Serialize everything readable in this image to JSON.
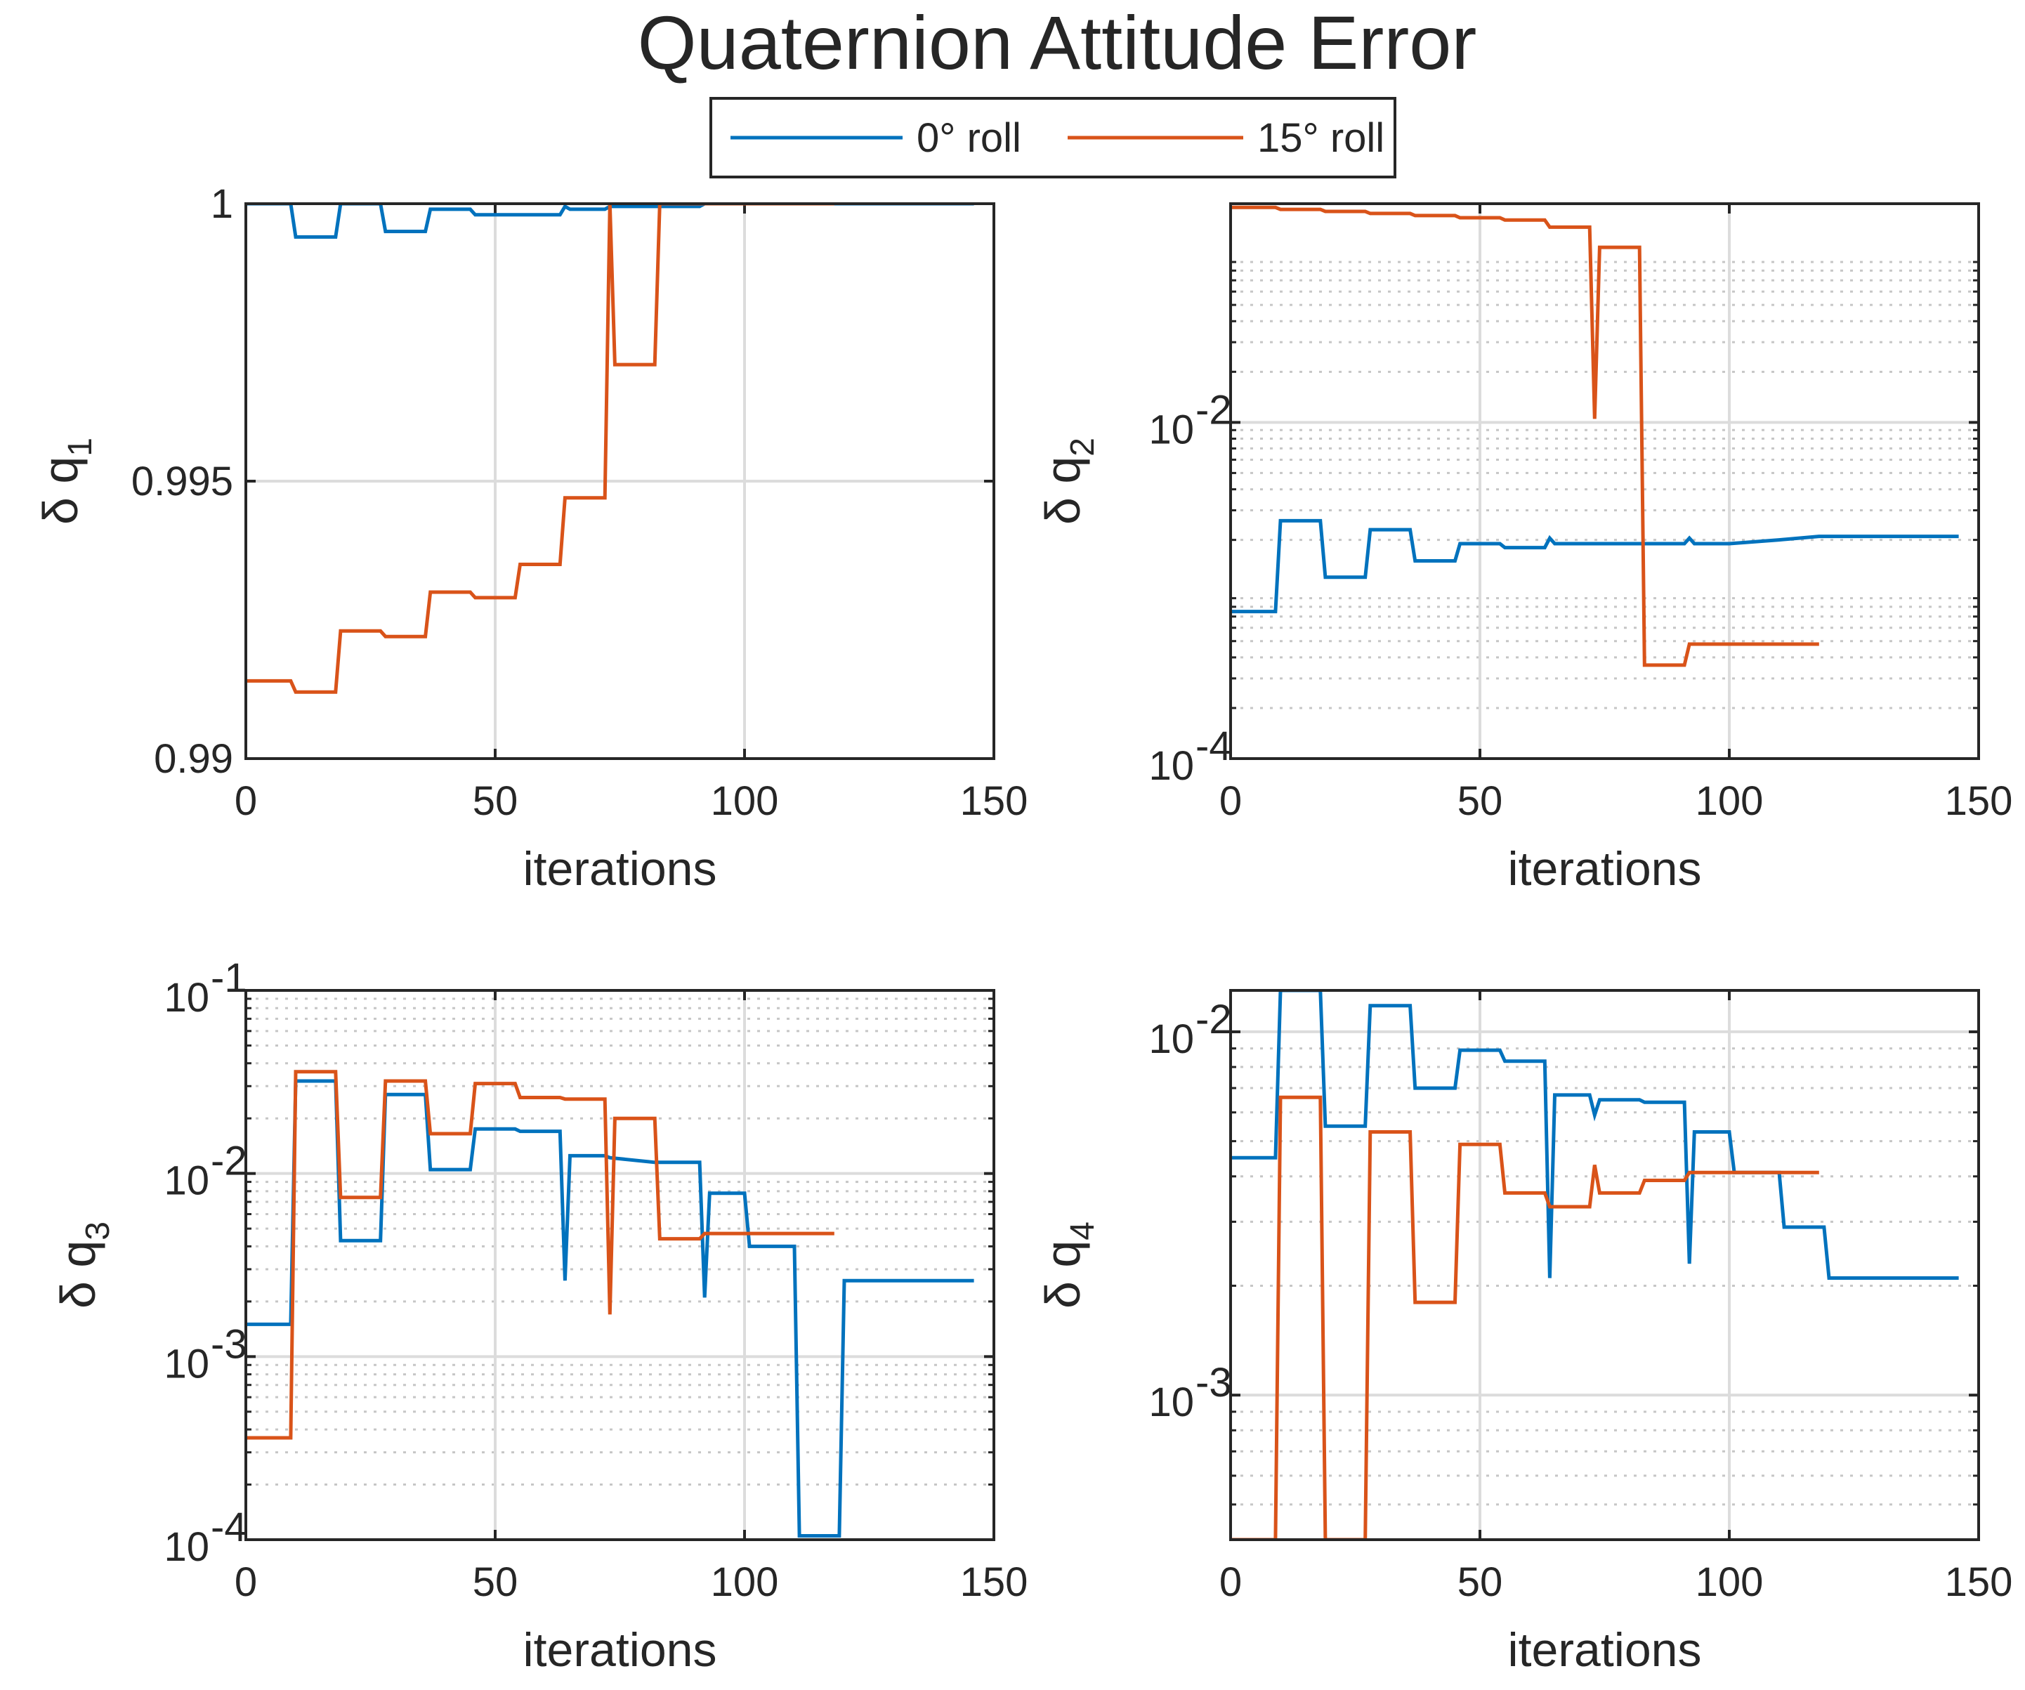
{
  "chart_data": {
    "type": "line",
    "title": "Quaternion Attitude Error",
    "legend": {
      "placement": "top-center",
      "entries": [
        {
          "label": "0° roll",
          "color": "#0072BD"
        },
        {
          "label": "15° roll",
          "color": "#D95319"
        }
      ]
    },
    "subplots": [
      {
        "id": "q1",
        "ylabel_base": "δ q",
        "ylabel_sub": "1",
        "xlabel": "iterations",
        "xlim": [
          0,
          150
        ],
        "xticks": [
          0,
          50,
          100,
          150
        ],
        "yscale": "linear",
        "ylim": [
          0.99,
          1.0
        ],
        "yticks": [
          {
            "value": 0.99,
            "label": "0.99"
          },
          {
            "value": 0.995,
            "label": "0.995"
          },
          {
            "value": 1.0,
            "label": "1"
          }
        ],
        "series": [
          {
            "name": "0° roll",
            "x": [
              0,
              9,
              10,
              18,
              19,
              27,
              28,
              36,
              37,
              45,
              46,
              54,
              55,
              63,
              64,
              65,
              72,
              73,
              82,
              83,
              91,
              92,
              100,
              110,
              118,
              146
            ],
            "y": [
              1.0,
              1.0,
              0.9994,
              0.9994,
              1.0,
              1.0,
              0.9995,
              0.9995,
              0.9999,
              0.9999,
              0.9998,
              0.9998,
              0.9998,
              0.9998,
              0.99995,
              0.9999,
              0.9999,
              0.99995,
              0.99995,
              0.99995,
              0.99995,
              1.0,
              1.0,
              1.0,
              1.0,
              1.0
            ]
          },
          {
            "name": "15° roll",
            "x": [
              0,
              9,
              10,
              18,
              19,
              27,
              28,
              36,
              37,
              45,
              46,
              54,
              55,
              63,
              64,
              72,
              73,
              74,
              82,
              83,
              91,
              92,
              100,
              110,
              118
            ],
            "y": [
              0.9914,
              0.9914,
              0.9912,
              0.9912,
              0.9923,
              0.9923,
              0.9922,
              0.9922,
              0.993,
              0.993,
              0.9929,
              0.9929,
              0.9935,
              0.9935,
              0.9947,
              0.9947,
              1.0,
              0.9971,
              0.9971,
              1.0,
              1.0,
              1.0,
              1.0,
              1.0,
              1.0
            ]
          }
        ]
      },
      {
        "id": "q2",
        "ylabel_base": "δ q",
        "ylabel_sub": "2",
        "xlabel": "iterations",
        "xlim": [
          0,
          150
        ],
        "xticks": [
          0,
          50,
          100,
          150
        ],
        "yscale": "log",
        "ylim": [
          0.0001,
          0.2
        ],
        "yticks": [
          {
            "value": 0.0001,
            "base": "10",
            "exp": "-4"
          },
          {
            "value": 0.01,
            "base": "10",
            "exp": "-2"
          }
        ],
        "series": [
          {
            "name": "0° roll",
            "x": [
              0,
              9,
              10,
              18,
              19,
              27,
              28,
              36,
              37,
              45,
              46,
              54,
              55,
              63,
              64,
              65,
              72,
              73,
              82,
              83,
              91,
              92,
              93,
              100,
              110,
              118,
              146
            ],
            "y": [
              0.00075,
              0.00075,
              0.0026,
              0.0026,
              0.0012,
              0.0012,
              0.0023,
              0.0023,
              0.0015,
              0.0015,
              0.0019,
              0.0019,
              0.0018,
              0.0018,
              0.00205,
              0.0019,
              0.0019,
              0.0019,
              0.0019,
              0.0019,
              0.0019,
              0.00205,
              0.0019,
              0.0019,
              0.002,
              0.0021,
              0.0021
            ]
          },
          {
            "name": "15° roll",
            "x": [
              0,
              9,
              10,
              18,
              19,
              27,
              28,
              36,
              37,
              45,
              46,
              54,
              55,
              63,
              64,
              72,
              73,
              74,
              82,
              83,
              91,
              92,
              100,
              110,
              118
            ],
            "y": [
              0.19,
              0.19,
              0.185,
              0.185,
              0.18,
              0.18,
              0.175,
              0.175,
              0.17,
              0.17,
              0.165,
              0.165,
              0.16,
              0.16,
              0.145,
              0.145,
              0.0105,
              0.11,
              0.11,
              0.00036,
              0.00036,
              0.00048,
              0.00048,
              0.00048,
              0.00048
            ]
          }
        ]
      },
      {
        "id": "q3",
        "ylabel_base": "δ q",
        "ylabel_sub": "3",
        "xlabel": "iterations",
        "xlim": [
          0,
          150
        ],
        "xticks": [
          0,
          50,
          100,
          150
        ],
        "yscale": "log",
        "ylim": [
          0.0001,
          0.1
        ],
        "yticks": [
          {
            "value": 0.0001,
            "base": "10",
            "exp": "-4"
          },
          {
            "value": 0.001,
            "base": "10",
            "exp": "-3"
          },
          {
            "value": 0.01,
            "base": "10",
            "exp": "-2"
          },
          {
            "value": 0.1,
            "base": "10",
            "exp": "-1"
          }
        ],
        "series": [
          {
            "name": "0° roll",
            "x": [
              0,
              9,
              10,
              18,
              19,
              27,
              28,
              36,
              37,
              45,
              46,
              54,
              55,
              63,
              64,
              65,
              72,
              73,
              82,
              83,
              91,
              92,
              93,
              100,
              101,
              110,
              111,
              119,
              120,
              146
            ],
            "y": [
              0.0015,
              0.0015,
              0.032,
              0.032,
              0.0043,
              0.0043,
              0.027,
              0.027,
              0.0105,
              0.0105,
              0.0175,
              0.0175,
              0.017,
              0.017,
              0.0026,
              0.0125,
              0.0125,
              0.0122,
              0.0115,
              0.0115,
              0.0115,
              0.0021,
              0.0078,
              0.0078,
              0.004,
              0.004,
              0.000105,
              0.000105,
              0.0026,
              0.0026
            ]
          },
          {
            "name": "15° roll",
            "x": [
              0,
              9,
              10,
              18,
              19,
              27,
              28,
              36,
              37,
              45,
              46,
              54,
              55,
              63,
              64,
              72,
              73,
              74,
              82,
              83,
              91,
              92,
              100,
              110,
              118
            ],
            "y": [
              0.00036,
              0.00036,
              0.036,
              0.036,
              0.0074,
              0.0074,
              0.032,
              0.032,
              0.0165,
              0.0165,
              0.031,
              0.031,
              0.026,
              0.026,
              0.0255,
              0.0255,
              0.0017,
              0.02,
              0.02,
              0.0044,
              0.0044,
              0.0047,
              0.0047,
              0.0047,
              0.0047
            ]
          }
        ]
      },
      {
        "id": "q4",
        "ylabel_base": "δ q",
        "ylabel_sub": "4",
        "xlabel": "iterations",
        "xlim": [
          0,
          150
        ],
        "xticks": [
          0,
          50,
          100,
          150
        ],
        "yscale": "log",
        "ylim": [
          0.0004,
          0.013
        ],
        "yticks": [
          {
            "value": 0.001,
            "base": "10",
            "exp": "-3"
          },
          {
            "value": 0.01,
            "base": "10",
            "exp": "-2"
          }
        ],
        "series": [
          {
            "name": "0° roll",
            "x": [
              0,
              9,
              10,
              18,
              19,
              27,
              28,
              36,
              37,
              45,
              46,
              54,
              55,
              63,
              64,
              65,
              72,
              73,
              74,
              82,
              83,
              91,
              92,
              93,
              100,
              101,
              110,
              111,
              119,
              120,
              146
            ],
            "y": [
              0.0045,
              0.0045,
              0.013,
              0.013,
              0.0055,
              0.0055,
              0.0118,
              0.0118,
              0.007,
              0.007,
              0.0089,
              0.0089,
              0.0083,
              0.0083,
              0.0021,
              0.0067,
              0.0067,
              0.0059,
              0.0065,
              0.0065,
              0.0064,
              0.0064,
              0.0023,
              0.0053,
              0.0053,
              0.0041,
              0.0041,
              0.0029,
              0.0029,
              0.0021,
              0.0021
            ]
          },
          {
            "name": "15° roll",
            "x": [
              0,
              9,
              10,
              18,
              19,
              27,
              28,
              36,
              37,
              45,
              46,
              54,
              55,
              63,
              64,
              72,
              73,
              74,
              82,
              83,
              91,
              92,
              100,
              110,
              118
            ],
            "y": [
              0.0004,
              0.0004,
              0.0066,
              0.0066,
              0.0004,
              0.0004,
              0.0053,
              0.0053,
              0.0018,
              0.0018,
              0.0049,
              0.0049,
              0.0036,
              0.0036,
              0.0033,
              0.0033,
              0.0043,
              0.0036,
              0.0036,
              0.0039,
              0.0039,
              0.0041,
              0.0041,
              0.0041,
              0.0041
            ]
          }
        ]
      }
    ]
  }
}
